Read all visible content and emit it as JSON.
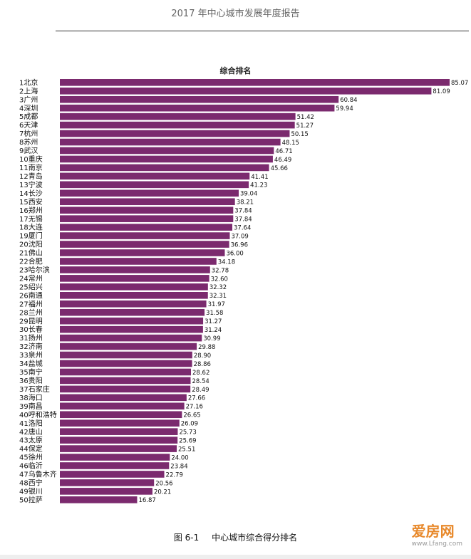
{
  "report_header": "2017 年中心城市发展年度报告",
  "caption": {
    "figure_no": "图 6-1",
    "text": "中心城市综合得分排名"
  },
  "watermark": {
    "brand": "爱房网",
    "url": "www.Lfang.com"
  },
  "colors": {
    "bar": "#7b2a6e",
    "text": "#111111"
  },
  "chart_data": {
    "type": "bar",
    "orientation": "horizontal",
    "title": "综合排名",
    "xlim": [
      0,
      85.07
    ],
    "categories": [
      "1北京",
      "2上海",
      "3广州",
      "4深圳",
      "5成都",
      "6天津",
      "7杭州",
      "8苏州",
      "9武汉",
      "10重庆",
      "11南京",
      "12青岛",
      "13宁波",
      "14长沙",
      "15西安",
      "16郑州",
      "17无锡",
      "18大连",
      "19厦门",
      "20沈阳",
      "21佛山",
      "22合肥",
      "23哈尔滨",
      "24常州",
      "25绍兴",
      "26南通",
      "27福州",
      "28兰州",
      "29昆明",
      "30长春",
      "31扬州",
      "32济南",
      "33泉州",
      "34盐城",
      "35南宁",
      "36贵阳",
      "37石家庄",
      "38海口",
      "39南昌",
      "40呼和浩特",
      "41洛阳",
      "42唐山",
      "43太原",
      "44保定",
      "45徐州",
      "46临沂",
      "47乌鲁木齐",
      "48西宁",
      "49银川",
      "50拉萨"
    ],
    "values": [
      85.07,
      81.09,
      60.84,
      59.94,
      51.42,
      51.27,
      50.15,
      48.15,
      46.71,
      46.49,
      45.66,
      41.41,
      41.23,
      39.04,
      38.21,
      37.84,
      37.84,
      37.64,
      37.09,
      36.96,
      36.0,
      34.18,
      32.78,
      32.6,
      32.32,
      32.31,
      31.97,
      31.58,
      31.27,
      31.24,
      30.99,
      29.88,
      28.9,
      28.86,
      28.62,
      28.54,
      28.49,
      27.66,
      27.16,
      26.65,
      26.09,
      25.73,
      25.69,
      25.51,
      24.0,
      23.84,
      22.79,
      20.56,
      20.21,
      16.87
    ],
    "value_labels": [
      "85.07",
      "81.09",
      "60.84",
      "59.94",
      "51.42",
      "51.27",
      "50.15",
      "48.15",
      "46.71",
      "46.49",
      "45.66",
      "41.41",
      "41.23",
      "39.04",
      "38.21",
      "37.84",
      "37.84",
      "37.64",
      "37.09",
      "36.96",
      "36.00",
      "34.18",
      "32.78",
      "32.60",
      "32.32",
      "32.31",
      "31.97",
      "31.58",
      "31.27",
      "31.24",
      "30.99",
      "29.88",
      "28.90",
      "28.86",
      "28.62",
      "28.54",
      "28.49",
      "27.66",
      "27.16",
      "26.65",
      "26.09",
      "25.73",
      "25.69",
      "25.51",
      "24.00",
      "23.84",
      "22.79",
      "20.56",
      "20.21",
      "16.87"
    ]
  }
}
